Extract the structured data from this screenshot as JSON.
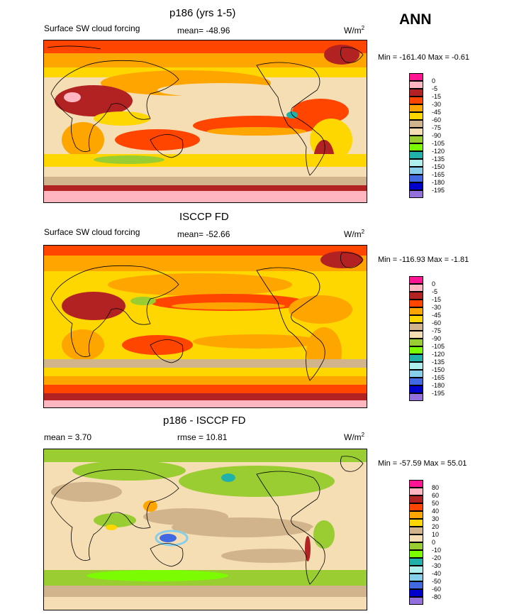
{
  "header": {
    "season": "ANN"
  },
  "panels": [
    {
      "title": "p186 (yrs 1-5)",
      "left_label": "Surface SW cloud forcing",
      "stat_label": "mean= -48.96",
      "units": "W/m",
      "units_sup": "2",
      "minmax": "Min = -161.40 Max =  -0.61",
      "legend_colors": [
        "#ff1493",
        "#ffb6c1",
        "#b22222",
        "#ff4500",
        "#ffa500",
        "#ffd700",
        "#d2b48c",
        "#f5deb3",
        "#9acd32",
        "#7cfc00",
        "#20b2aa",
        "#afeeee",
        "#87ceeb",
        "#4169e1",
        "#0000cd",
        "#9370db"
      ],
      "legend_labels": [
        "0",
        "-5",
        "-15",
        "-30",
        "-45",
        "-60",
        "-75",
        "-90",
        "-105",
        "-120",
        "-135",
        "-150",
        "-165",
        "-180",
        "-195"
      ]
    },
    {
      "title": "ISCCP FD",
      "left_label": "Surface SW cloud forcing",
      "stat_label": "mean= -52.66",
      "units": "W/m",
      "units_sup": "2",
      "minmax": "Min = -116.93 Max =  -1.81",
      "legend_colors": [
        "#ff1493",
        "#ffb6c1",
        "#b22222",
        "#ff4500",
        "#ffa500",
        "#ffd700",
        "#d2b48c",
        "#f5deb3",
        "#9acd32",
        "#7cfc00",
        "#20b2aa",
        "#afeeee",
        "#87ceeb",
        "#4169e1",
        "#0000cd",
        "#9370db"
      ],
      "legend_labels": [
        "0",
        "-5",
        "-15",
        "-30",
        "-45",
        "-60",
        "-75",
        "-90",
        "-105",
        "-120",
        "-135",
        "-150",
        "-165",
        "-180",
        "-195"
      ]
    },
    {
      "title": "p186 - ISCCP FD",
      "left_label": "mean =   3.70",
      "stat_label": "rmse =  10.81",
      "units": "W/m",
      "units_sup": "2",
      "minmax": "Min = -57.59 Max =  55.01",
      "legend_colors": [
        "#ff1493",
        "#ffb6c1",
        "#b22222",
        "#ff4500",
        "#ffa500",
        "#ffd700",
        "#d2b48c",
        "#f5deb3",
        "#9acd32",
        "#7cfc00",
        "#20b2aa",
        "#afeeee",
        "#87ceeb",
        "#4169e1",
        "#0000cd",
        "#9370db"
      ],
      "legend_labels": [
        "80",
        "60",
        "50",
        "40",
        "30",
        "20",
        "10",
        "0",
        "-10",
        "-20",
        "-30",
        "-40",
        "-50",
        "-60",
        "-80"
      ]
    }
  ],
  "chart_data": [
    {
      "type": "heatmap",
      "title": "p186 (yrs 1-5)",
      "subtitle": "Surface SW cloud forcing",
      "units": "W/m2",
      "mean": -48.96,
      "min": -161.4,
      "max": -0.61,
      "levels": [
        0,
        -5,
        -15,
        -30,
        -45,
        -60,
        -75,
        -90,
        -105,
        -120,
        -135,
        -150,
        -165,
        -180,
        -195
      ]
    },
    {
      "type": "heatmap",
      "title": "ISCCP FD",
      "subtitle": "Surface SW cloud forcing",
      "units": "W/m2",
      "mean": -52.66,
      "min": -116.93,
      "max": -1.81,
      "levels": [
        0,
        -5,
        -15,
        -30,
        -45,
        -60,
        -75,
        -90,
        -105,
        -120,
        -135,
        -150,
        -165,
        -180,
        -195
      ]
    },
    {
      "type": "heatmap",
      "title": "p186 - ISCCP FD",
      "units": "W/m2",
      "mean": 3.7,
      "rmse": 10.81,
      "min": -57.59,
      "max": 55.01,
      "levels": [
        80,
        60,
        50,
        40,
        30,
        20,
        10,
        0,
        -10,
        -20,
        -30,
        -40,
        -50,
        -60,
        -80
      ]
    }
  ]
}
